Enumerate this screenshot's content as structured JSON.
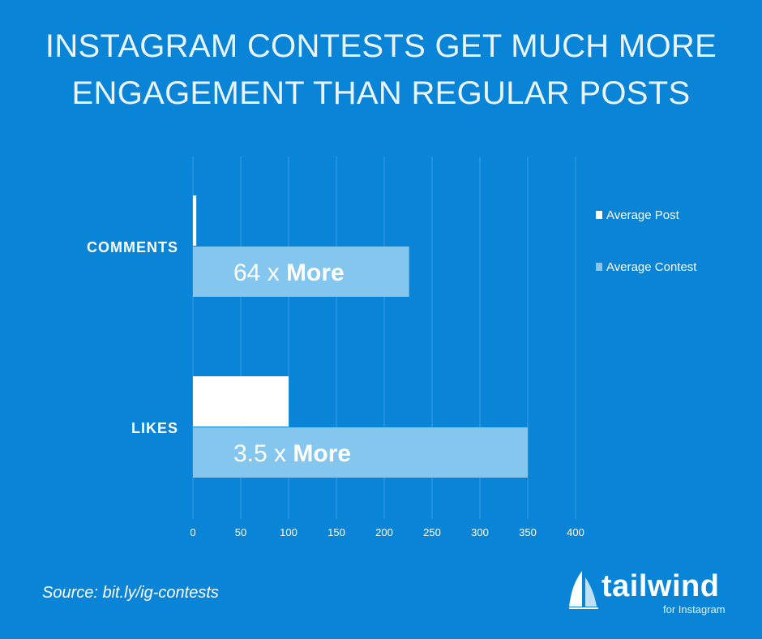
{
  "title": {
    "line1": "INSTAGRAM CONTESTS GET MUCH MORE",
    "line2": "ENGAGEMENT THAN REGULAR POSTS"
  },
  "chart_data": {
    "type": "bar",
    "orientation": "horizontal",
    "categories": [
      "COMMENTS",
      "LIKES"
    ],
    "series": [
      {
        "name": "Average Post",
        "values": [
          3.5,
          100
        ],
        "color": "#ffffff"
      },
      {
        "name": "Average Contest",
        "values": [
          226,
          350
        ],
        "color": "#84c6ee"
      }
    ],
    "bar_labels": [
      "64 x More",
      "3.5 x More"
    ],
    "xticks": [
      "0",
      "50",
      "100",
      "150",
      "200",
      "250",
      "300",
      "350",
      "400"
    ],
    "xlim": [
      0,
      400
    ],
    "grid": true,
    "legend_position": "top-right"
  },
  "footer": {
    "source": "Source: bit.ly/ig-contests"
  },
  "logo": {
    "name": "tailwind",
    "tagline": "for Instagram"
  },
  "colors": {
    "background": "#0a84d6",
    "gridline": "#3a9de0",
    "contest_bar": "#84c6ee",
    "post_bar": "#ffffff"
  }
}
